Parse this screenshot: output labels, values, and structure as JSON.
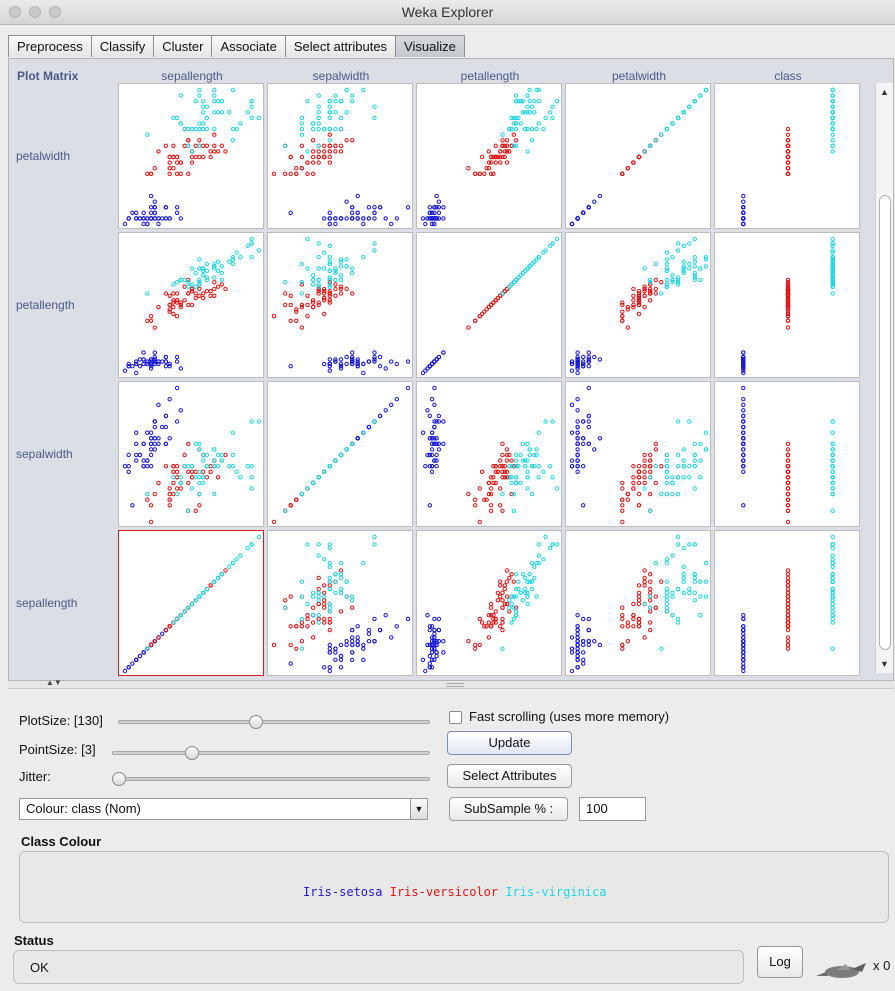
{
  "window": {
    "title": "Weka Explorer"
  },
  "tabs": [
    "Preprocess",
    "Classify",
    "Cluster",
    "Associate",
    "Select attributes",
    "Visualize"
  ],
  "active_tab": "Visualize",
  "plot_matrix": {
    "label": "Plot Matrix",
    "columns": [
      "sepallength",
      "sepalwidth",
      "petallength",
      "petalwidth",
      "class"
    ],
    "rows": [
      "petalwidth",
      "petallength",
      "sepalwidth",
      "sepallength"
    ],
    "selected_cell": "sepallength x sepallength"
  },
  "colors": {
    "setosa": "#1a1ad6",
    "versicolor": "#e01515",
    "virginica": "#21d6e4",
    "selection": "#d42020"
  },
  "chart_data": {
    "type": "scatter",
    "title": "Plot Matrix",
    "attributes": [
      "sepallength",
      "sepalwidth",
      "petallength",
      "petalwidth",
      "class"
    ],
    "classes": [
      "Iris-setosa",
      "Iris-versicolor",
      "Iris-virginica"
    ],
    "class_colors": [
      "#1a1ad6",
      "#e01515",
      "#21d6e4"
    ],
    "ranges": {
      "sepallength": [
        4.3,
        7.9
      ],
      "sepalwidth": [
        2.0,
        4.4
      ],
      "petallength": [
        1.0,
        6.9
      ],
      "petalwidth": [
        0.1,
        2.5
      ]
    },
    "point_size": 3,
    "series": [
      {
        "name": "Iris-setosa",
        "sepallength": [
          5.1,
          4.9,
          4.7,
          4.6,
          5.0,
          5.4,
          4.6,
          5.0,
          4.4,
          4.9,
          5.4,
          4.8,
          4.8,
          4.3,
          5.8,
          5.7,
          5.4,
          5.1,
          5.7,
          5.1,
          5.4,
          5.1,
          4.6,
          5.1,
          4.8,
          5.0,
          5.0,
          5.2,
          5.2,
          4.7,
          4.8,
          5.4,
          5.2,
          5.5,
          4.9,
          5.0,
          5.5,
          4.9,
          4.4,
          5.1,
          5.0,
          4.5,
          4.4,
          5.0,
          5.1,
          4.8,
          5.1,
          4.6,
          5.3,
          5.0
        ],
        "sepalwidth": [
          3.5,
          3.0,
          3.2,
          3.1,
          3.6,
          3.9,
          3.4,
          3.4,
          2.9,
          3.1,
          3.7,
          3.4,
          3.0,
          3.0,
          4.0,
          4.4,
          3.9,
          3.5,
          3.8,
          3.8,
          3.4,
          3.7,
          3.6,
          3.3,
          3.4,
          3.0,
          3.4,
          3.5,
          3.4,
          3.2,
          3.1,
          3.4,
          4.1,
          4.2,
          3.1,
          3.2,
          3.5,
          3.6,
          3.0,
          3.4,
          3.5,
          2.3,
          3.2,
          3.5,
          3.8,
          3.0,
          3.8,
          3.2,
          3.7,
          3.3
        ],
        "petallength": [
          1.4,
          1.4,
          1.3,
          1.5,
          1.4,
          1.7,
          1.4,
          1.5,
          1.4,
          1.5,
          1.5,
          1.6,
          1.4,
          1.1,
          1.2,
          1.5,
          1.3,
          1.4,
          1.7,
          1.5,
          1.7,
          1.5,
          1.0,
          1.7,
          1.9,
          1.6,
          1.6,
          1.5,
          1.4,
          1.6,
          1.6,
          1.5,
          1.5,
          1.4,
          1.5,
          1.2,
          1.3,
          1.4,
          1.3,
          1.5,
          1.3,
          1.3,
          1.3,
          1.6,
          1.9,
          1.4,
          1.6,
          1.4,
          1.5,
          1.4
        ],
        "petalwidth": [
          0.2,
          0.2,
          0.2,
          0.2,
          0.2,
          0.4,
          0.3,
          0.2,
          0.2,
          0.1,
          0.2,
          0.2,
          0.1,
          0.1,
          0.2,
          0.4,
          0.4,
          0.3,
          0.3,
          0.3,
          0.2,
          0.4,
          0.2,
          0.5,
          0.2,
          0.2,
          0.4,
          0.2,
          0.2,
          0.2,
          0.2,
          0.4,
          0.1,
          0.2,
          0.2,
          0.2,
          0.2,
          0.1,
          0.2,
          0.2,
          0.3,
          0.3,
          0.2,
          0.6,
          0.4,
          0.3,
          0.2,
          0.2,
          0.2,
          0.2
        ]
      },
      {
        "name": "Iris-versicolor",
        "sepallength": [
          7.0,
          6.4,
          6.9,
          5.5,
          6.5,
          5.7,
          6.3,
          4.9,
          6.6,
          5.2,
          5.0,
          5.9,
          6.0,
          6.1,
          5.6,
          6.7,
          5.6,
          5.8,
          6.2,
          5.6,
          5.9,
          6.1,
          6.3,
          6.1,
          6.4,
          6.6,
          6.8,
          6.7,
          6.0,
          5.7,
          5.5,
          5.5,
          5.8,
          6.0,
          5.4,
          6.0,
          6.7,
          6.3,
          5.6,
          5.5,
          5.5,
          6.1,
          5.8,
          5.0,
          5.6,
          5.7,
          5.7,
          6.2,
          5.1,
          5.7
        ],
        "sepalwidth": [
          3.2,
          3.2,
          3.1,
          2.3,
          2.8,
          2.8,
          3.3,
          2.4,
          2.9,
          2.7,
          2.0,
          3.0,
          2.2,
          2.9,
          2.9,
          3.1,
          3.0,
          2.7,
          2.2,
          2.5,
          3.2,
          2.8,
          2.5,
          2.8,
          2.9,
          3.0,
          2.8,
          3.0,
          2.9,
          2.6,
          2.4,
          2.4,
          2.7,
          2.7,
          3.0,
          3.4,
          3.1,
          2.3,
          3.0,
          2.5,
          2.6,
          3.0,
          2.6,
          2.3,
          2.7,
          3.0,
          2.9,
          2.9,
          2.5,
          2.8
        ],
        "petallength": [
          4.7,
          4.5,
          4.9,
          4.0,
          4.6,
          4.5,
          4.7,
          3.3,
          4.6,
          3.9,
          3.5,
          4.2,
          4.0,
          4.7,
          3.6,
          4.4,
          4.5,
          4.1,
          4.5,
          3.9,
          4.8,
          4.0,
          4.9,
          4.7,
          4.3,
          4.4,
          4.8,
          5.0,
          4.5,
          3.5,
          3.8,
          3.7,
          3.9,
          5.1,
          4.5,
          4.5,
          4.7,
          4.4,
          4.1,
          4.0,
          4.4,
          4.6,
          4.0,
          3.3,
          4.2,
          4.2,
          4.2,
          4.3,
          3.0,
          4.1
        ],
        "petalwidth": [
          1.4,
          1.5,
          1.5,
          1.3,
          1.5,
          1.3,
          1.6,
          1.0,
          1.3,
          1.4,
          1.0,
          1.5,
          1.0,
          1.4,
          1.3,
          1.4,
          1.5,
          1.0,
          1.5,
          1.1,
          1.8,
          1.3,
          1.5,
          1.2,
          1.3,
          1.4,
          1.4,
          1.7,
          1.5,
          1.0,
          1.1,
          1.0,
          1.2,
          1.6,
          1.5,
          1.6,
          1.5,
          1.3,
          1.3,
          1.3,
          1.2,
          1.4,
          1.2,
          1.0,
          1.3,
          1.2,
          1.3,
          1.3,
          1.1,
          1.3
        ]
      },
      {
        "name": "Iris-virginica",
        "sepallength": [
          6.3,
          5.8,
          7.1,
          6.3,
          6.5,
          7.6,
          4.9,
          7.3,
          6.7,
          7.2,
          6.5,
          6.4,
          6.8,
          5.7,
          5.8,
          6.4,
          6.5,
          7.7,
          7.7,
          6.0,
          6.9,
          5.6,
          7.7,
          6.3,
          6.7,
          7.2,
          6.2,
          6.1,
          6.4,
          7.2,
          7.4,
          7.9,
          6.4,
          6.3,
          6.1,
          7.7,
          6.3,
          6.4,
          6.0,
          6.9,
          6.7,
          6.9,
          5.8,
          6.8,
          6.7,
          6.7,
          6.3,
          6.5,
          6.2,
          5.9
        ],
        "sepalwidth": [
          3.3,
          2.7,
          3.0,
          2.9,
          3.0,
          3.0,
          2.5,
          2.9,
          2.5,
          3.6,
          3.2,
          2.7,
          3.0,
          2.5,
          2.8,
          3.2,
          3.0,
          3.8,
          2.6,
          2.2,
          3.2,
          2.8,
          2.8,
          2.7,
          3.3,
          3.2,
          2.8,
          3.0,
          2.8,
          3.0,
          2.8,
          3.8,
          2.8,
          2.8,
          2.6,
          3.0,
          3.4,
          3.1,
          3.0,
          3.1,
          3.1,
          3.1,
          2.7,
          3.2,
          3.3,
          3.0,
          2.5,
          3.0,
          3.4,
          3.0
        ],
        "petallength": [
          6.0,
          5.1,
          5.9,
          5.6,
          5.8,
          6.6,
          4.5,
          6.3,
          5.8,
          6.1,
          5.1,
          5.3,
          5.5,
          5.0,
          5.1,
          5.3,
          5.5,
          6.7,
          6.9,
          5.0,
          5.7,
          4.9,
          6.7,
          4.9,
          5.7,
          6.0,
          4.8,
          4.9,
          5.6,
          5.8,
          6.1,
          6.4,
          5.6,
          5.1,
          5.6,
          6.1,
          5.6,
          5.5,
          4.8,
          5.4,
          5.6,
          5.1,
          5.1,
          5.9,
          5.7,
          5.2,
          5.0,
          5.2,
          5.4,
          5.1
        ],
        "petalwidth": [
          2.5,
          1.9,
          2.1,
          1.8,
          2.2,
          2.1,
          1.7,
          1.8,
          1.8,
          2.5,
          2.0,
          1.9,
          2.1,
          2.0,
          2.4,
          2.3,
          1.8,
          2.2,
          2.3,
          1.5,
          2.3,
          2.0,
          2.0,
          1.8,
          2.1,
          1.8,
          1.8,
          1.8,
          2.1,
          1.6,
          1.9,
          2.0,
          2.2,
          1.5,
          1.4,
          2.3,
          2.4,
          1.8,
          1.8,
          2.1,
          2.4,
          2.3,
          1.9,
          2.3,
          2.5,
          2.3,
          1.9,
          2.0,
          2.3,
          1.8
        ]
      }
    ]
  },
  "controls": {
    "plot_size_label": "PlotSize: [130]",
    "plot_size": 130,
    "point_size_label": "PointSize: [3]",
    "point_size": 3,
    "jitter_label": "Jitter:",
    "jitter": 0,
    "colour_select": "Colour: class  (Nom)",
    "fast_scrolling_label": "Fast scrolling (uses more memory)",
    "fast_scrolling_checked": false,
    "update_button": "Update",
    "select_attributes_button": "Select Attributes",
    "subsample_button": "SubSample % :",
    "subsample_value": "100"
  },
  "class_colour": {
    "title": "Class Colour",
    "entries": [
      {
        "label": "Iris-setosa",
        "color": "#1a1ad6"
      },
      {
        "label": "Iris-versicolor",
        "color": "#e01515"
      },
      {
        "label": "Iris-virginica",
        "color": "#21d6e4"
      }
    ]
  },
  "status": {
    "title": "Status",
    "text": "OK",
    "log_button": "Log",
    "task_count": "x 0"
  }
}
